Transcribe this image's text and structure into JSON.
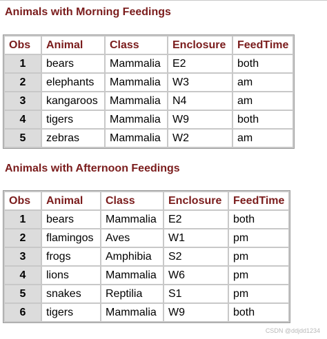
{
  "tables": [
    {
      "title": "Animals with Morning Feedings",
      "headers": [
        "Obs",
        "Animal",
        "Class",
        "Enclosure",
        "FeedTime"
      ],
      "rows": [
        [
          "1",
          "bears",
          "Mammalia",
          "E2",
          "both"
        ],
        [
          "2",
          "elephants",
          "Mammalia",
          "W3",
          "am"
        ],
        [
          "3",
          "kangaroos",
          "Mammalia",
          "N4",
          "am"
        ],
        [
          "4",
          "tigers",
          "Mammalia",
          "W9",
          "both"
        ],
        [
          "5",
          "zebras",
          "Mammalia",
          "W2",
          "am"
        ]
      ]
    },
    {
      "title": "Animals with Afternoon Feedings",
      "headers": [
        "Obs",
        "Animal",
        "Class",
        "Enclosure",
        "FeedTime"
      ],
      "rows": [
        [
          "1",
          "bears",
          "Mammalia",
          "E2",
          "both"
        ],
        [
          "2",
          "flamingos",
          "Aves",
          "W1",
          "pm"
        ],
        [
          "3",
          "frogs",
          "Amphibia",
          "S2",
          "pm"
        ],
        [
          "4",
          "lions",
          "Mammalia",
          "W6",
          "pm"
        ],
        [
          "5",
          "snakes",
          "Reptilia",
          "S1",
          "pm"
        ],
        [
          "6",
          "tigers",
          "Mammalia",
          "W9",
          "both"
        ]
      ]
    }
  ],
  "watermark": "CSDN @ddjdd1234"
}
